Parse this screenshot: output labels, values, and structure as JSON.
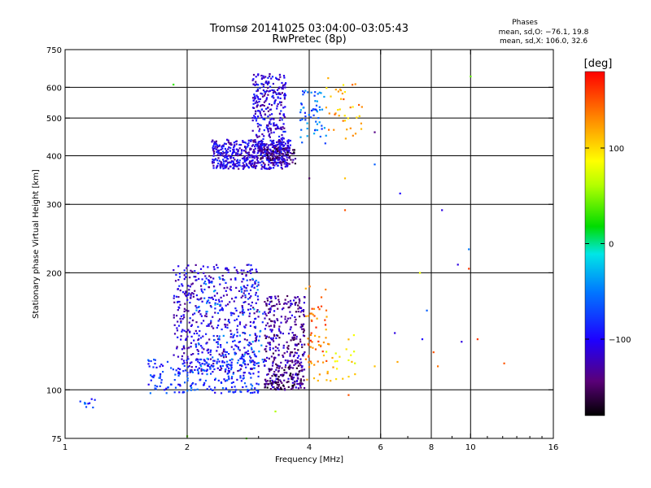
{
  "chart_data": {
    "type": "scatter",
    "title": "Tromsø 20141025 03:04:00–03:05:43",
    "subtitle": "RwPretec (8p)",
    "xlabel": "Frequency [MHz]",
    "ylabel": "Stationary phase Virtual Height [km]",
    "x_scale": "log",
    "y_scale": "log",
    "xlim": [
      1,
      16
    ],
    "ylim": [
      75,
      750
    ],
    "x_ticks": [
      1,
      2,
      4,
      6,
      8,
      10,
      16
    ],
    "y_ticks": [
      75,
      100,
      200,
      300,
      400,
      500,
      600,
      750
    ],
    "x_grid": [
      2,
      4,
      6,
      8,
      10
    ],
    "y_grid": [
      100,
      200,
      300,
      400,
      500,
      600
    ],
    "grid": true,
    "annotation": {
      "heading": "Phases",
      "line1": "mean, sd,O: −76.1, 19.8",
      "line2": "mean, sd,X: 106.0, 32.6"
    },
    "colorbar": {
      "label": "[deg]",
      "range": [
        -180,
        180
      ],
      "ticks": [
        100,
        0,
        -100
      ],
      "placement": "right"
    },
    "clusters": [
      {
        "f": [
          2.3,
          3.6
        ],
        "h": [
          370,
          440
        ],
        "phase": -110,
        "n": 520
      },
      {
        "f": [
          2.9,
          3.5
        ],
        "h": [
          400,
          650
        ],
        "phase": -110,
        "n": 320
      },
      {
        "f": [
          3.0,
          3.7
        ],
        "h": [
          380,
          420
        ],
        "phase": -150,
        "n": 80
      },
      {
        "f": [
          3.8,
          4.4
        ],
        "h": [
          430,
          590
        ],
        "phase": -60,
        "n": 60
      },
      {
        "f": [
          4.4,
          5.4
        ],
        "h": [
          440,
          640
        ],
        "phase": 120,
        "n": 40
      },
      {
        "f": [
          1.85,
          3.0
        ],
        "h": [
          110,
          210
        ],
        "phase": -110,
        "n": 520
      },
      {
        "f": [
          1.6,
          3.0
        ],
        "h": [
          98,
          120
        ],
        "phase": -80,
        "n": 220
      },
      {
        "f": [
          2.1,
          3.1
        ],
        "h": [
          115,
          195
        ],
        "phase": -60,
        "n": 100
      },
      {
        "f": [
          3.1,
          3.9
        ],
        "h": [
          100,
          175
        ],
        "phase": -130,
        "n": 340
      },
      {
        "f": [
          3.1,
          3.9
        ],
        "h": [
          100,
          115
        ],
        "phase": -150,
        "n": 80
      },
      {
        "f": [
          3.9,
          4.5
        ],
        "h": [
          105,
          185
        ],
        "phase": 140,
        "n": 60
      },
      {
        "f": [
          4.3,
          5.2
        ],
        "h": [
          105,
          140
        ],
        "phase": 100,
        "n": 25
      },
      {
        "f": [
          1.05,
          1.2
        ],
        "h": [
          90,
          95
        ],
        "phase": -70,
        "n": 10
      }
    ],
    "points": [
      {
        "f": 1.85,
        "h": 610,
        "phase": 30
      },
      {
        "f": 4.9,
        "h": 350,
        "phase": 110
      },
      {
        "f": 4.9,
        "h": 290,
        "phase": 150
      },
      {
        "f": 4.0,
        "h": 350,
        "phase": -150
      },
      {
        "f": 5.8,
        "h": 460,
        "phase": -140
      },
      {
        "f": 5.8,
        "h": 380,
        "phase": -60
      },
      {
        "f": 6.7,
        "h": 320,
        "phase": -100
      },
      {
        "f": 8.5,
        "h": 290,
        "phase": -110
      },
      {
        "f": 9.3,
        "h": 210,
        "phase": -110
      },
      {
        "f": 9.9,
        "h": 230,
        "phase": -50
      },
      {
        "f": 9.9,
        "h": 205,
        "phase": 160
      },
      {
        "f": 10.0,
        "h": 640,
        "phase": 40
      },
      {
        "f": 7.5,
        "h": 200,
        "phase": 80
      },
      {
        "f": 7.8,
        "h": 160,
        "phase": -60
      },
      {
        "f": 6.5,
        "h": 140,
        "phase": -110
      },
      {
        "f": 7.6,
        "h": 135,
        "phase": -100
      },
      {
        "f": 9.5,
        "h": 133,
        "phase": -110
      },
      {
        "f": 10.4,
        "h": 135,
        "phase": 160
      },
      {
        "f": 12.1,
        "h": 117,
        "phase": 150
      },
      {
        "f": 8.1,
        "h": 125,
        "phase": 150
      },
      {
        "f": 8.3,
        "h": 115,
        "phase": 140
      },
      {
        "f": 6.6,
        "h": 118,
        "phase": 120
      },
      {
        "f": 5.8,
        "h": 115,
        "phase": 110
      },
      {
        "f": 5.0,
        "h": 97,
        "phase": 150
      },
      {
        "f": 3.3,
        "h": 88,
        "phase": 60
      },
      {
        "f": 2.8,
        "h": 75,
        "phase": 40
      },
      {
        "f": 2.0,
        "h": 76,
        "phase": 40
      }
    ]
  }
}
